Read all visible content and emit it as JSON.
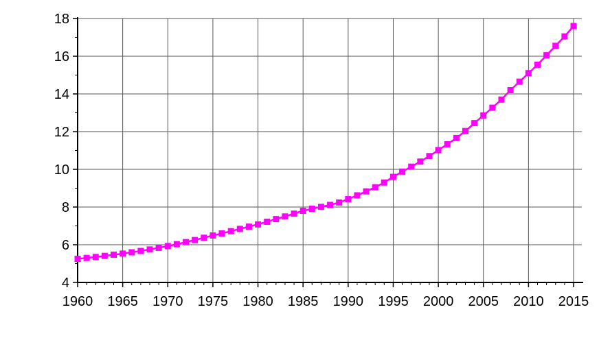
{
  "chart_data": {
    "type": "line",
    "title": "",
    "xlabel": "",
    "ylabel": "",
    "xlim": [
      1960,
      2015
    ],
    "ylim": [
      4,
      18
    ],
    "xticks": [
      1960,
      1965,
      1970,
      1975,
      1980,
      1985,
      1990,
      1995,
      2000,
      2005,
      2010,
      2015
    ],
    "yticks": [
      4,
      6,
      8,
      10,
      12,
      14,
      16,
      18
    ],
    "grid": true,
    "legend": "none",
    "series": [
      {
        "color": "#ff00ff",
        "marker": "square",
        "x": [
          1960,
          1961,
          1962,
          1963,
          1964,
          1965,
          1966,
          1967,
          1968,
          1969,
          1970,
          1971,
          1972,
          1973,
          1974,
          1975,
          1976,
          1977,
          1978,
          1979,
          1980,
          1981,
          1982,
          1983,
          1984,
          1985,
          1986,
          1987,
          1988,
          1989,
          1990,
          1991,
          1992,
          1993,
          1994,
          1995,
          1996,
          1997,
          1998,
          1999,
          2000,
          2001,
          2002,
          2003,
          2004,
          2005,
          2006,
          2007,
          2008,
          2009,
          2010,
          2011,
          2012,
          2013,
          2014,
          2015
        ],
        "y": [
          5.25,
          5.3,
          5.35,
          5.41,
          5.47,
          5.53,
          5.6,
          5.67,
          5.75,
          5.84,
          5.93,
          6.03,
          6.14,
          6.25,
          6.37,
          6.49,
          6.6,
          6.72,
          6.84,
          6.96,
          7.08,
          7.22,
          7.36,
          7.5,
          7.65,
          7.8,
          7.91,
          8.01,
          8.11,
          8.24,
          8.42,
          8.62,
          8.83,
          9.05,
          9.3,
          9.6,
          9.88,
          10.14,
          10.41,
          10.7,
          11.02,
          11.33,
          11.66,
          12.03,
          12.45,
          12.86,
          13.27,
          13.7,
          14.2,
          14.65,
          15.1,
          15.55,
          16.05,
          16.55,
          17.05,
          17.6
        ]
      }
    ]
  }
}
